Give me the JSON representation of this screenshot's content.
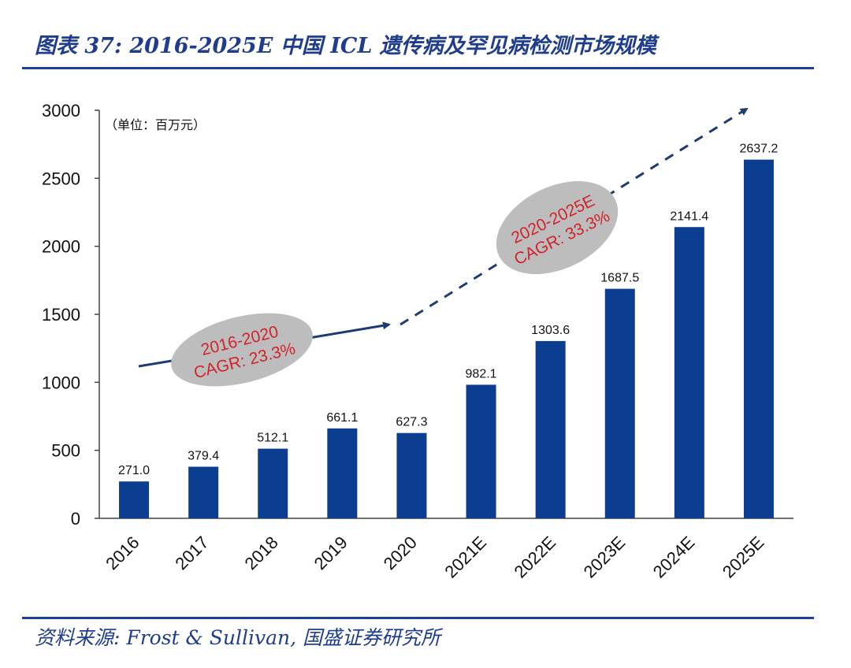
{
  "header": {
    "title": "图表 37: 2016-2025E 中国 ICL 遗传病及罕见病检测市场规模"
  },
  "footer": {
    "source": "资料来源: Frost & Sullivan, 国盛证券研究所"
  },
  "chart_data": {
    "type": "bar",
    "title": "图表 37: 2016-2025E 中国 ICL 遗传病及罕见病检测市场规模",
    "unit_label": "（单位：百万元）",
    "categories": [
      "2016",
      "2017",
      "2018",
      "2019",
      "2020",
      "2021E",
      "2022E",
      "2023E",
      "2024E",
      "2025E"
    ],
    "values": [
      271.0,
      379.4,
      512.1,
      661.1,
      627.3,
      982.1,
      1303.6,
      1687.5,
      2141.4,
      2637.2
    ],
    "value_labels": [
      "271.0",
      "379.4",
      "512.1",
      "661.1",
      "627.3",
      "982.1",
      "1303.6",
      "1687.5",
      "2141.4",
      "2637.2"
    ],
    "yticks": [
      "0",
      "500",
      "1000",
      "1500",
      "2000",
      "2500",
      "3000"
    ],
    "ylim": [
      0,
      3000
    ],
    "grid": false,
    "bar_color": "#0b3d91",
    "annotations": [
      {
        "line1": "2016-2020",
        "line2": "CAGR: 23.3%",
        "color": "#d2232a"
      },
      {
        "line1": "2020-2025E",
        "line2": "CAGR: 33.3%",
        "color": "#d2232a"
      }
    ]
  }
}
